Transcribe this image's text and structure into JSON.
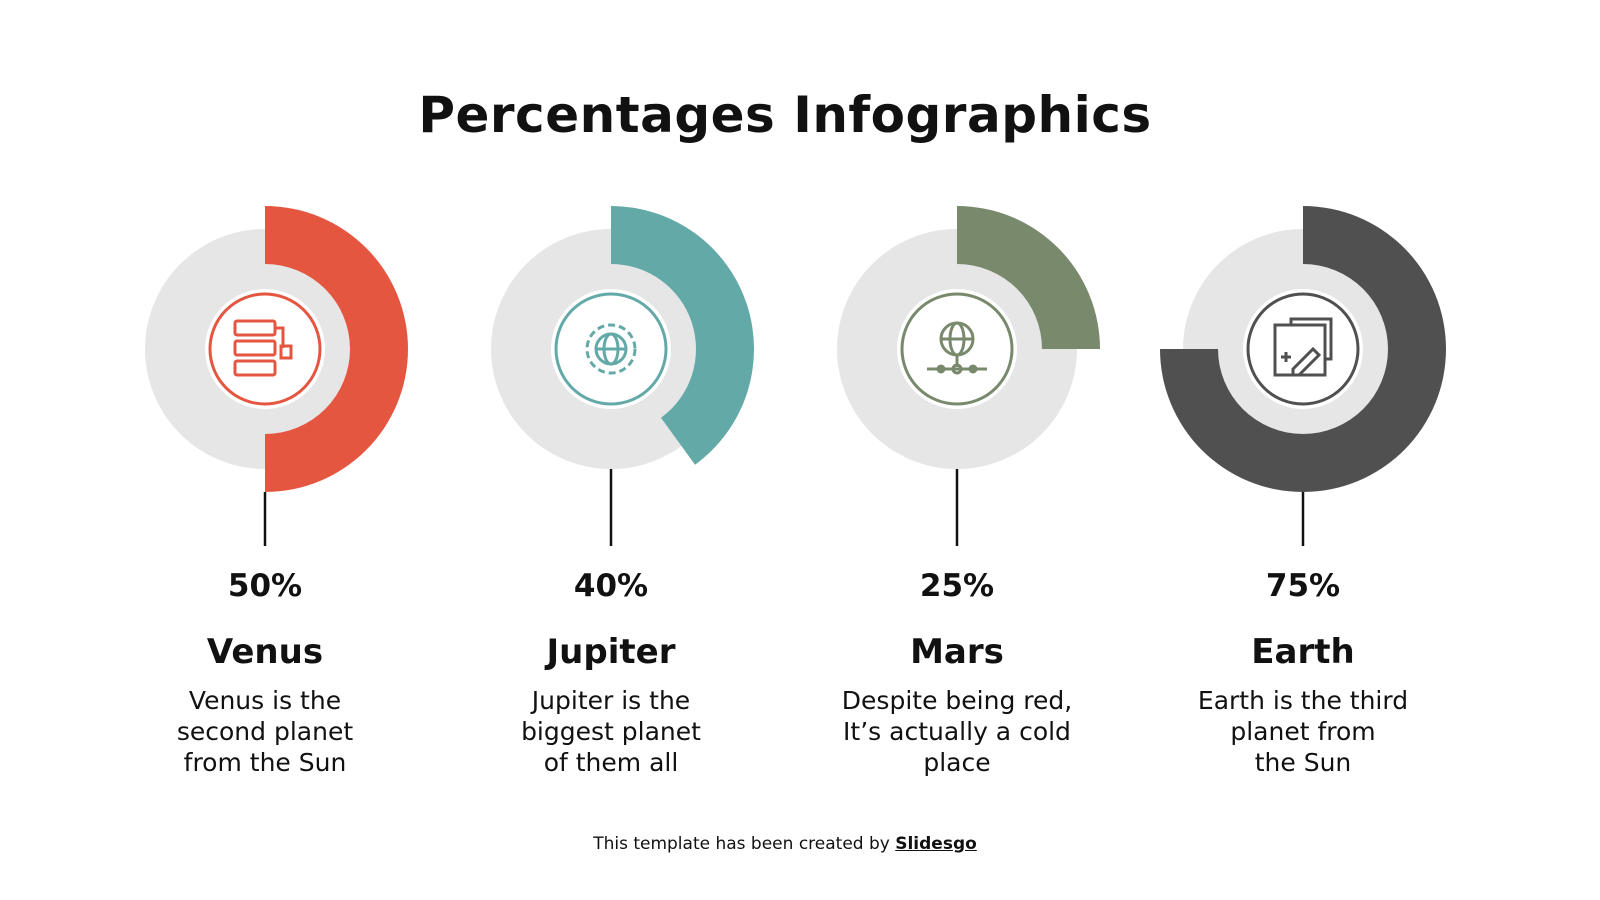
{
  "title": "Percentages Infographics",
  "colors": {
    "track": "#E6E6E6",
    "stem": "#111111"
  },
  "items": [
    {
      "percent_label": "50%",
      "value": 50,
      "name": "Venus",
      "description": "Venus is the\nsecond planet\nfrom the Sun",
      "color": "#E55640",
      "icon": "server-lock-icon"
    },
    {
      "percent_label": "40%",
      "value": 40,
      "name": "Jupiter",
      "description": "Jupiter is the\nbiggest planet\nof them all",
      "color": "#63A9A8",
      "icon": "globe-gear-icon"
    },
    {
      "percent_label": "25%",
      "value": 25,
      "name": "Mars",
      "description": "Despite being red,\nIt’s actually a    cold\nplace",
      "color": "#78896C",
      "icon": "globe-network-icon"
    },
    {
      "percent_label": "75%",
      "value": 75,
      "name": "Earth",
      "description": "Earth is the third\nplanet from\nthe Sun",
      "color": "#505050",
      "icon": "map-edit-icon"
    }
  ],
  "footer": {
    "text": "This template has been created by ",
    "link": "Slidesgo"
  }
}
